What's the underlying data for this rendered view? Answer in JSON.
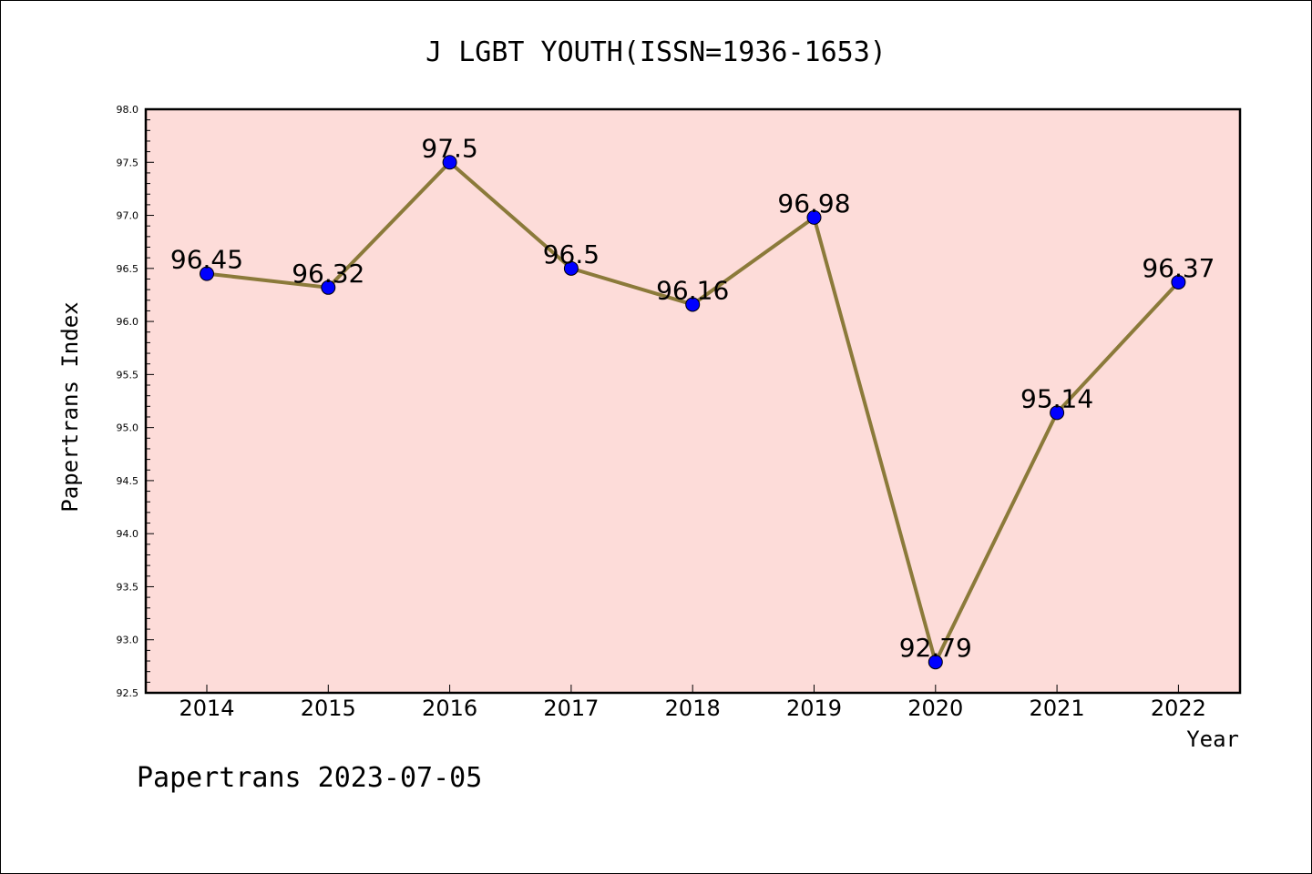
{
  "chart_data": {
    "type": "line",
    "title": "J LGBT YOUTH(ISSN=1936-1653)",
    "xlabel": "Year",
    "ylabel": "Papertrans Index",
    "categories": [
      "2014",
      "2015",
      "2016",
      "2017",
      "2018",
      "2019",
      "2020",
      "2021",
      "2022"
    ],
    "series": [
      {
        "values": [
          96.45,
          96.32,
          97.5,
          96.5,
          96.16,
          96.98,
          92.79,
          95.14,
          96.37
        ]
      }
    ],
    "data_labels": [
      "96.45",
      "96.32",
      "97.5",
      "96.5",
      "96.16",
      "96.98",
      "92.79",
      "95.14",
      "96.37"
    ],
    "ylim": [
      92.5,
      98.0
    ],
    "yticks": [
      "92.5",
      "93.0",
      "93.5",
      "94.0",
      "94.5",
      "95.0",
      "95.5",
      "96.0",
      "96.5",
      "97.0",
      "97.5",
      "98.0"
    ],
    "grid": false,
    "colors": {
      "plot_background": "#fddcd9",
      "line": "#8b7a3a",
      "marker": "#0000ff"
    }
  },
  "footer": "Papertrans 2023-07-05"
}
